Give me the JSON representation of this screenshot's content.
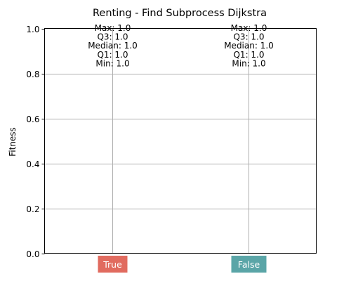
{
  "chart_data": {
    "type": "box",
    "title": "Renting - Find Subprocess Dijkstra",
    "xlabel": "",
    "ylabel": "Fitness",
    "ylim": [
      0,
      1.0
    ],
    "yticks": [
      "0.0",
      "0.2",
      "0.4",
      "0.6",
      "0.8",
      "1.0"
    ],
    "grid": true,
    "categories": [
      {
        "label": "True",
        "color": "#e16b5f",
        "stats": {
          "max": 1.0,
          "q3": 1.0,
          "median": 1.0,
          "q1": 1.0,
          "min": 1.0
        },
        "annotations": [
          "Max: 1.0",
          "Q3: 1.0",
          "Median: 1.0",
          "Q1: 1.0",
          "Min: 1.0"
        ]
      },
      {
        "label": "False",
        "color": "#5aa5a7",
        "stats": {
          "max": 1.0,
          "q3": 1.0,
          "median": 1.0,
          "q1": 1.0,
          "min": 1.0
        },
        "annotations": [
          "Max: 1.0",
          "Q3: 1.0",
          "Median: 1.0",
          "Q1: 1.0",
          "Min: 1.0"
        ]
      }
    ]
  }
}
